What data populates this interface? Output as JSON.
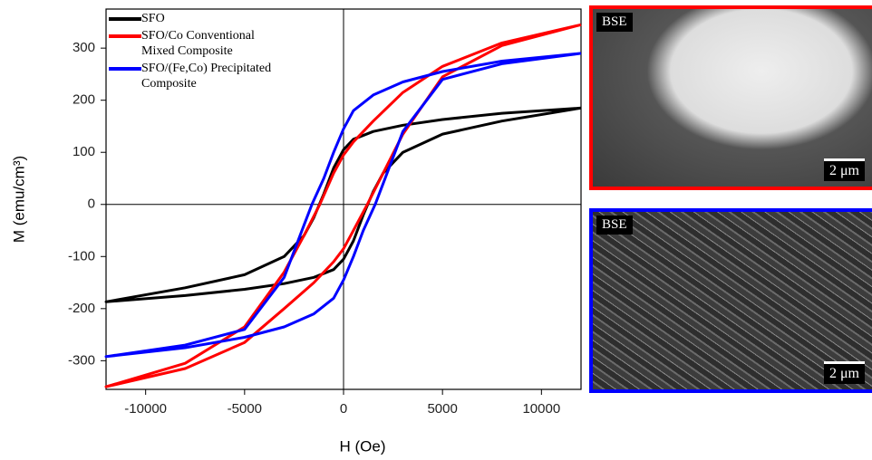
{
  "chart_data": {
    "type": "line",
    "xlabel": "H (Oe)",
    "ylabel": "M (emu/cm³)",
    "xlim": [
      -12000,
      12000
    ],
    "ylim": [
      -355,
      375
    ],
    "xticks": [
      -10000,
      -5000,
      0,
      5000,
      10000
    ],
    "yticks": [
      -300,
      -200,
      -100,
      0,
      100,
      200,
      300
    ],
    "legend": "upper left",
    "series": [
      {
        "name": "SFO",
        "color": "#000000",
        "x": [
          12000,
          8000,
          5000,
          3000,
          1500,
          500,
          0,
          -500,
          -1000,
          -1500,
          -2000,
          -3000,
          -5000,
          -8000,
          -12000,
          -8000,
          -5000,
          -3000,
          -1500,
          -500,
          0,
          500,
          1000,
          1500,
          2000,
          3000,
          5000,
          8000,
          12000
        ],
        "values": [
          185,
          175,
          163,
          152,
          140,
          125,
          105,
          70,
          20,
          -25,
          -60,
          -100,
          -135,
          -160,
          -187,
          -175,
          -163,
          -152,
          -140,
          -125,
          -105,
          -70,
          -20,
          25,
          60,
          100,
          135,
          160,
          185
        ]
      },
      {
        "name": "SFO/Co Conventional Mixed Composite",
        "color": "#ff0000",
        "x": [
          12000,
          8000,
          5000,
          3000,
          1500,
          500,
          0,
          -500,
          -1200,
          -2000,
          -3000,
          -5000,
          -8000,
          -12000,
          -8000,
          -5000,
          -3000,
          -1500,
          -500,
          0,
          500,
          1200,
          2000,
          3000,
          5000,
          8000,
          12000
        ],
        "values": [
          345,
          310,
          265,
          215,
          160,
          120,
          95,
          60,
          0,
          -60,
          -130,
          -235,
          -305,
          -350,
          -315,
          -265,
          -200,
          -150,
          -110,
          -85,
          -50,
          0,
          60,
          135,
          245,
          305,
          345
        ]
      },
      {
        "name": "SFO/(Fe,Co) Precipitated Composite",
        "color": "#0000ff",
        "x": [
          12000,
          8000,
          5000,
          3000,
          1500,
          500,
          0,
          -500,
          -1000,
          -1600,
          -2000,
          -3000,
          -5000,
          -8000,
          -12000,
          -8000,
          -5000,
          -3000,
          -1500,
          -500,
          0,
          500,
          1000,
          1600,
          2000,
          3000,
          5000,
          8000,
          12000
        ],
        "values": [
          290,
          275,
          255,
          235,
          210,
          180,
          145,
          100,
          50,
          0,
          -40,
          -140,
          -240,
          -270,
          -292,
          -275,
          -255,
          -235,
          -210,
          -180,
          -145,
          -100,
          -50,
          0,
          40,
          140,
          240,
          270,
          290
        ]
      }
    ]
  },
  "images": [
    {
      "label": "BSE",
      "scale_bar": "2 μm"
    },
    {
      "label": "BSE",
      "scale_bar": "2 μm"
    }
  ]
}
